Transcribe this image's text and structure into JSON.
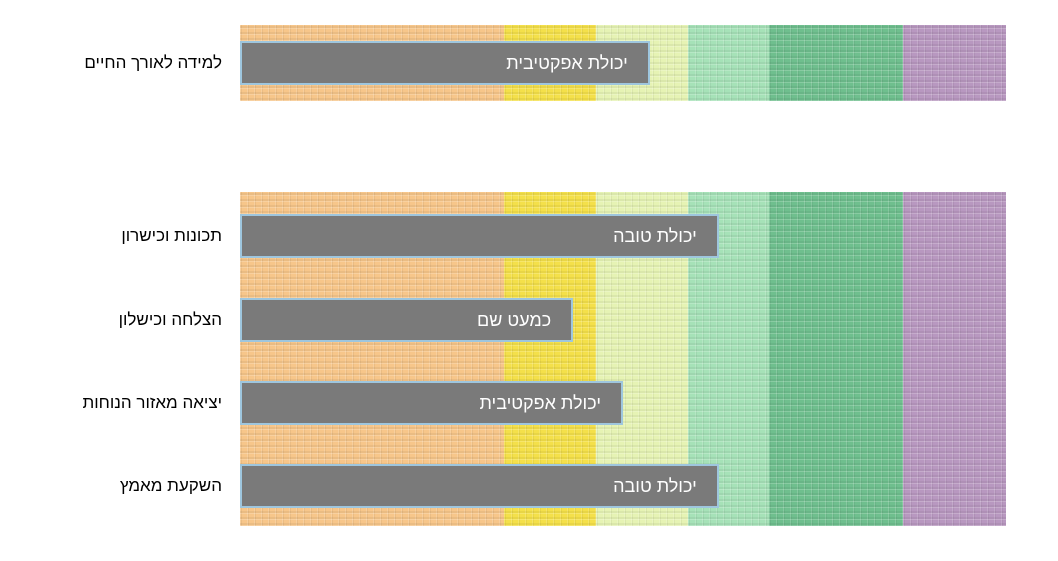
{
  "chart_data": [
    {
      "type": "bar",
      "orientation": "horizontal",
      "scale": {
        "min": 0,
        "max": 1,
        "band_boundaries": [
          0,
          0.345,
          0.465,
          0.585,
          0.69,
          0.865,
          1
        ]
      },
      "band_colors": [
        "#f7c68a",
        "#f4e04a",
        "#e6f3b4",
        "#a6e2b8",
        "#6fbf8e",
        "#b898c0"
      ],
      "categories": [
        "למידה לאורך החיים"
      ],
      "values": [
        0.535
      ],
      "value_labels": [
        "יכולת אפקטיבית"
      ]
    },
    {
      "type": "bar",
      "orientation": "horizontal",
      "scale": {
        "min": 0,
        "max": 1,
        "band_boundaries": [
          0,
          0.345,
          0.465,
          0.585,
          0.69,
          0.865,
          1
        ]
      },
      "band_colors": [
        "#f7c68a",
        "#f4e04a",
        "#e6f3b4",
        "#a6e2b8",
        "#6fbf8e",
        "#b898c0"
      ],
      "categories": [
        "תכונות וכישרון",
        "הצלחה וכישלון",
        "יציאה מאזור הנוחות",
        "השקעת מאמץ"
      ],
      "values": [
        0.625,
        0.435,
        0.5,
        0.625
      ],
      "value_labels": [
        "יכולת טובה",
        "כמעט שם",
        "יכולת אפקטיבית",
        "יכולת טובה"
      ]
    }
  ]
}
